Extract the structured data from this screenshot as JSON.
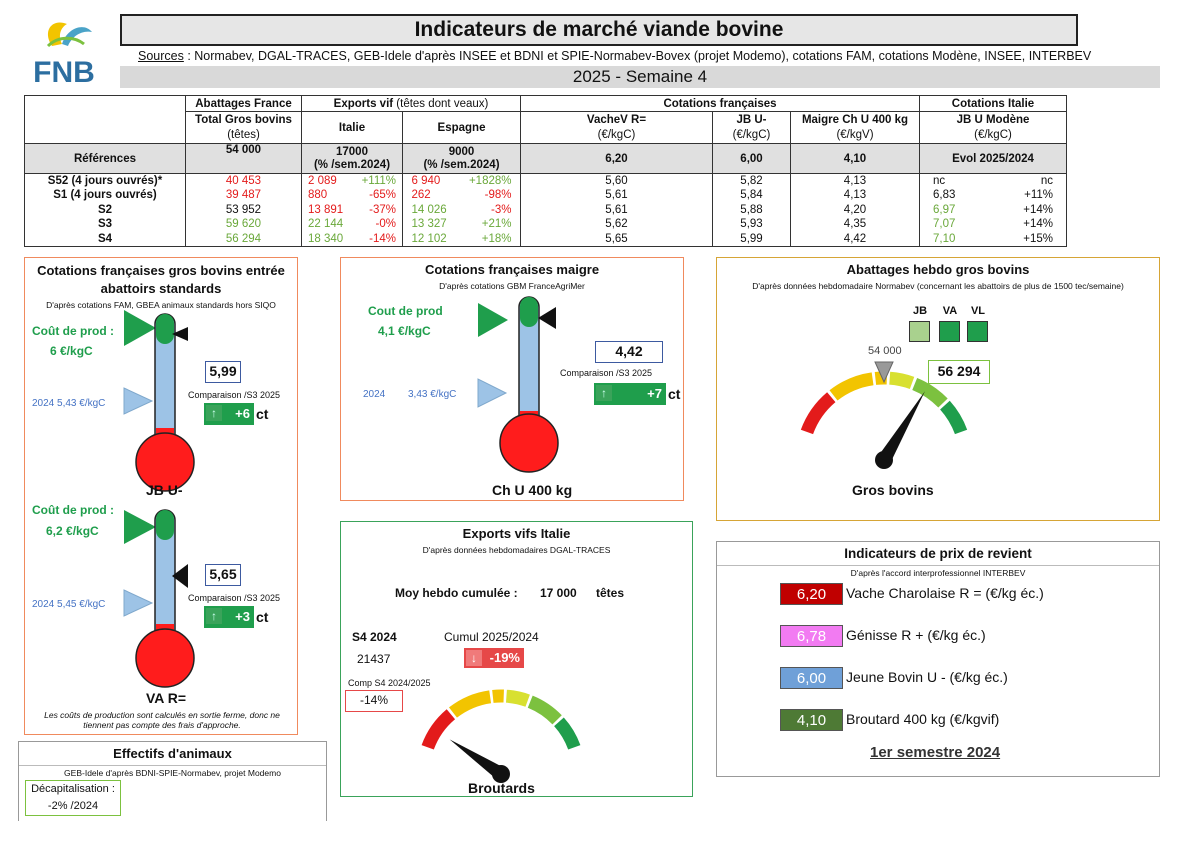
{
  "header": {
    "title": "Indicateurs de marché viande bovine",
    "sources_label": "Sources",
    "sources_text": " : Normabev, DGAL-TRACES, GEB-Idele d'après INSEE et BDNI et SPIE-Normabev-Bovex (projet Modemo), cotations FAM, cotations Modène, INSEE, INTERBEV",
    "week": "2025 - Semaine 4",
    "logo_text": "FNB"
  },
  "table": {
    "h1": {
      "abattages": "Abattages France",
      "exports": "Exports vif",
      "exports_sub": " (têtes dont veaux)",
      "cot_fr": "Cotations françaises",
      "cot_it": "Cotations Italie"
    },
    "h2": {
      "total": "Total Gros bovins",
      "italie": "Italie",
      "espagne": "Espagne",
      "vache": "VacheV R=",
      "jb": "JB U-",
      "maigre": "Maigre Ch U 400 kg",
      "jbmod": "JB U Modène"
    },
    "h3": {
      "tetes": "(têtes)",
      "vache": "(€/kgC)",
      "jb": "(€/kgC)",
      "maigre": "(€/kgV)",
      "jbmod": "(€/kgC)"
    },
    "ref": {
      "label": "Références",
      "total": "54 000",
      "italie": "17000",
      "italie_sub": "(% /sem.2024)",
      "espagne": "9000",
      "espagne_sub": "(% /sem.2024)",
      "vache": "6,20",
      "jb": "6,00",
      "maigre": "4,10",
      "evol": "Evol 2025/2024"
    },
    "rows": [
      {
        "label": "S52 (4 jours ouvrés)*",
        "total": "40 453",
        "it": "2 089",
        "itp": "+111%",
        "es": "6 940",
        "esp": "+1828%",
        "vache": "5,60",
        "jb": "5,82",
        "maigre": "4,13",
        "mod": "nc",
        "evol": "nc"
      },
      {
        "label": "S1 (4 jours ouvrés)",
        "total": "39 487",
        "it": "880",
        "itp": "-65%",
        "es": "262",
        "esp": "-98%",
        "vache": "5,61",
        "jb": "5,84",
        "maigre": "4,13",
        "mod": "6,83",
        "evol": "+11%"
      },
      {
        "label": "S2",
        "total": "53 952",
        "it": "13 891",
        "itp": "-37%",
        "es": "14 026",
        "esp": "-3%",
        "vache": "5,61",
        "jb": "5,88",
        "maigre": "4,20",
        "mod": "6,97",
        "evol": "+14%"
      },
      {
        "label": "S3",
        "total": "59 620",
        "it": "22 144",
        "itp": "-0%",
        "es": "13 327",
        "esp": "+21%",
        "vache": "5,62",
        "jb": "5,93",
        "maigre": "4,35",
        "mod": "7,07",
        "evol": "+14%"
      },
      {
        "label": "S4",
        "total": "56 294",
        "it": "18 340",
        "itp": "-14%",
        "es": "12 102",
        "esp": "+18%",
        "vache": "5,65",
        "jb": "5,99",
        "maigre": "4,42",
        "mod": "7,10",
        "evol": "+15%"
      }
    ]
  },
  "cot_gb": {
    "title": "Cotations françaises gros bovins entrée abattoirs standards",
    "note": "D'après cotations FAM, GBEA animaux standards hors SIQO",
    "jb": {
      "cout_label": "Coût de prod :",
      "cout_value": "6 €/kgC",
      "ref_2024": "2024   5,43 €/kgC",
      "value": "5,99",
      "comp": "Comparaison /S3 2025",
      "delta": "+6",
      "unit": "ct",
      "name": "JB U-",
      "fill": 0.6
    },
    "va": {
      "cout_label": "Coût de prod :",
      "cout_value": "6,2 €/kgC",
      "ref_2024": "2024   5,45 €/kgC",
      "value": "5,65",
      "comp": "Comparaison /S3 2025",
      "delta": "+3",
      "unit": "ct",
      "name": "VA R=",
      "fill": 0.6
    },
    "footnote": "Les coûts de production sont calculés en sortie ferme, donc ne tiennent pas compte des frais d'approche."
  },
  "cot_maigre": {
    "title": "Cotations françaises maigre",
    "note": "D'après cotations GBM FranceAgriMer",
    "cout_label": "Cout de prod",
    "cout_value": "4,1 €/kgC",
    "ref_2024": "2024",
    "ref_2024_value": "3,43 €/kgC",
    "value": "4,42",
    "comp": "Comparaison /S3 2025",
    "delta": "+7",
    "unit": "ct",
    "name": "Ch U 400 kg",
    "fill": 0.6
  },
  "abattages": {
    "title": "Abattages hebdo gros bovins",
    "note": "D'après données hebdomadaire Normabev (concernant les abattoirs de plus de 1500 tec/semaine)",
    "legend": [
      "JB",
      "VA",
      "VL"
    ],
    "ref": "54 000",
    "value": "56 294",
    "name": "Gros bovins",
    "gauge_ratio": 0.72
  },
  "exports": {
    "title": "Exports vifs  Italie",
    "note": "D'après données hebdomadaires DGAL-TRACES",
    "moy_label": "Moy hebdo cumulée :",
    "moy_value": "17 000",
    "moy_unit": "têtes",
    "s4_label": "S4 2024",
    "s4_value": "21437",
    "cumul_label": "Cumul 2025/2024",
    "cumul_value": "-19%",
    "comp_label": "Comp S4 2024/2025",
    "comp_value": "-14%",
    "name": "Broutards",
    "gauge_ratio": 0.1
  },
  "prix": {
    "title": "Indicateurs de prix de revient",
    "note": "D'après l'accord interprofessionnel INTERBEV",
    "items": [
      {
        "value": "6,20",
        "label": "Vache Charolaise R = (€/kg éc.)",
        "color": "#c00000"
      },
      {
        "value": "6,78",
        "label": "Génisse R + (€/kg éc.)",
        "color": "#f27bf2"
      },
      {
        "value": "6,00",
        "label": "Jeune Bovin U - (€/kg éc.)",
        "color": "#6fa0d8"
      },
      {
        "value": "4,10",
        "label": "Broutard 400 kg (€/kgvif)",
        "color": "#4e7a35"
      }
    ],
    "period": "1er semestre 2024"
  },
  "effectifs": {
    "title": "Effectifs d'animaux",
    "note": "GEB-Idele d'après BDNI-SPIE-Normabev, projet Modemo",
    "decap_label": "Décapitalisation :",
    "decap_value": "-2% /2024"
  }
}
